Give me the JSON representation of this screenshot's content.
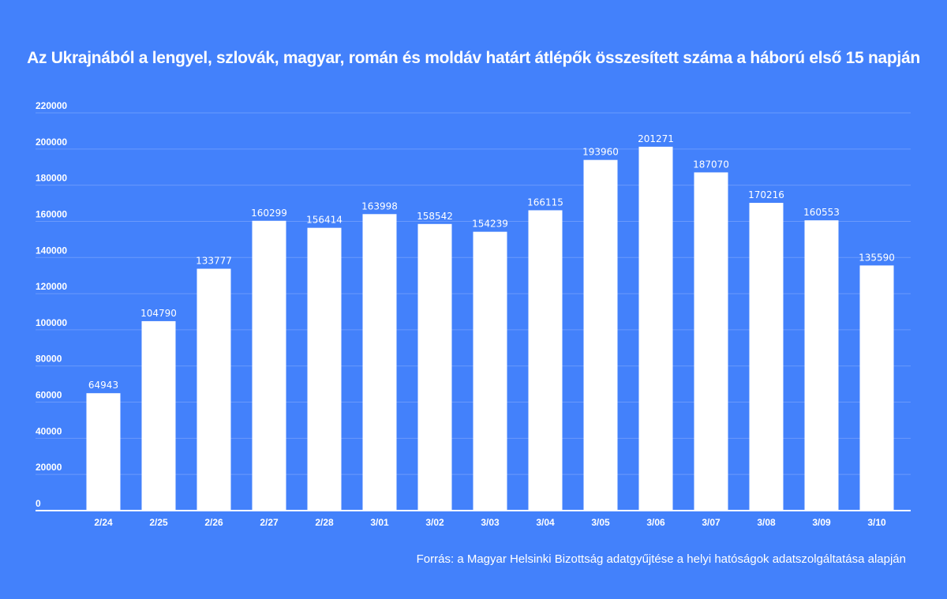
{
  "chart_data": {
    "type": "bar",
    "title": "Az Ukrajnából a lengyel, szlovák, magyar, román és moldáv határt átlépők összesített száma a háború első 15 napján",
    "categories": [
      "2/24",
      "2/25",
      "2/26",
      "2/27",
      "2/28",
      "3/01",
      "3/02",
      "3/03",
      "3/04",
      "3/05",
      "3/06",
      "3/07",
      "3/08",
      "3/09",
      "3/10"
    ],
    "values": [
      64943,
      104790,
      133777,
      160299,
      156414,
      163998,
      158542,
      154239,
      166115,
      193960,
      201271,
      187070,
      170216,
      160553,
      135590
    ],
    "data_labels": [
      "64943",
      "104790",
      "133777",
      "160299",
      "156414",
      "163998",
      "158542",
      "154239",
      "166115",
      "193960",
      "201271",
      "187070",
      "170216",
      "160553",
      "135590"
    ],
    "ylim": [
      0,
      220000
    ],
    "yticks": [
      0,
      20000,
      40000,
      60000,
      80000,
      100000,
      120000,
      140000,
      160000,
      180000,
      200000,
      220000
    ],
    "ytick_labels": [
      "0",
      "20000",
      "40000",
      "60000",
      "80000",
      "100000",
      "120000",
      "140000",
      "160000",
      "180000",
      "200000",
      "220000"
    ],
    "xlabel": "",
    "ylabel": "",
    "grid": true,
    "legend": "none",
    "colors": {
      "background": "#4381fb",
      "bar": "#ffffff",
      "grid": "#6a9afc",
      "axis": "#ffffff",
      "text": "#ffffff"
    }
  },
  "source": "Forrás: a Magyar Helsinki Bizottság adatgyűjtése a helyi hatóságok adatszolgáltatása alapján"
}
